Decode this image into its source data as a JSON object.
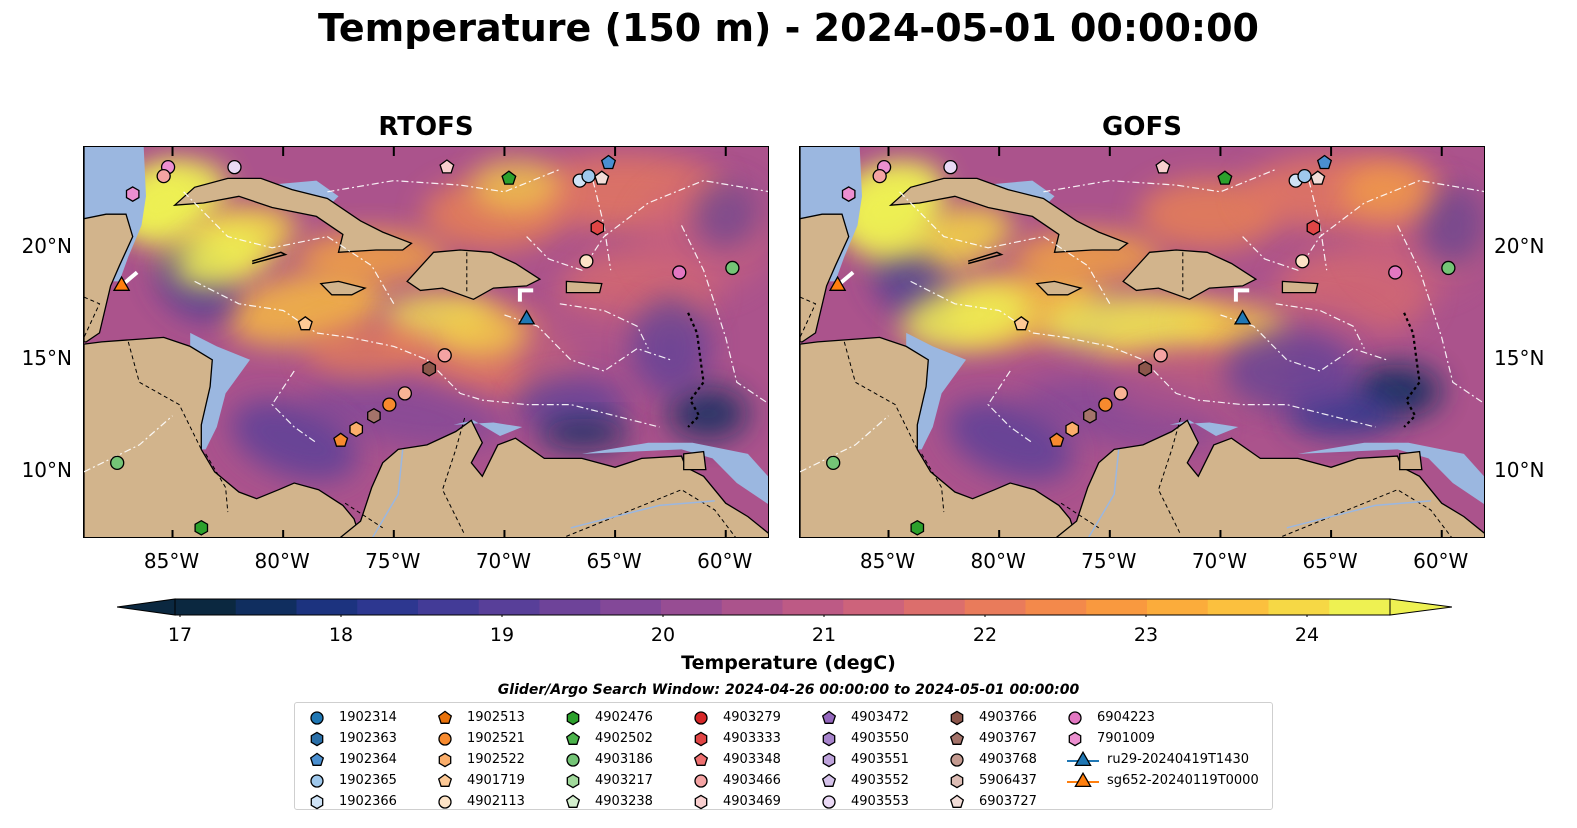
{
  "title": "Temperature (150 m) - 2024-05-01 00:00:00",
  "panels": [
    {
      "title": "RTOFS"
    },
    {
      "title": "GOFS"
    }
  ],
  "lon_labels": [
    "85°W",
    "80°W",
    "75°W",
    "70°W",
    "65°W",
    "60°W"
  ],
  "lat_labels": [
    "20°N",
    "15°N",
    "10°N"
  ],
  "colorbar": {
    "label": "Temperature (degC)",
    "ticks": [
      "17",
      "18",
      "19",
      "20",
      "21",
      "22",
      "23",
      "24"
    ],
    "range": [
      16.5,
      24.5
    ],
    "step": 0.5,
    "colors": [
      "#0b2840",
      "#102e5f",
      "#1c337f",
      "#2d3790",
      "#433b97",
      "#583f99",
      "#6e4399",
      "#834898",
      "#974d93",
      "#ab538c",
      "#bd5a85",
      "#cd637b",
      "#dc6e6c",
      "#e97b5b",
      "#f3894b",
      "#f9993f",
      "#fbac3b",
      "#fbc03e",
      "#f6d845",
      "#eef152"
    ]
  },
  "search_window": "Glider/Argo Search Window: 2024-04-26 00:00:00 to 2024-05-01 00:00:00",
  "colors": {
    "land": "#d2b48c",
    "shelf": "#9bb7e0",
    "deep_cold": "#0b2840",
    "ru29": "#1f77b4",
    "sg652": "#ff7f0e"
  },
  "legend": [
    {
      "label": "1902314",
      "marker": "circle",
      "color": "#1f77b4"
    },
    {
      "label": "1902363",
      "marker": "hexagon",
      "color": "#2a6fa8"
    },
    {
      "label": "1902364",
      "marker": "pentagon",
      "color": "#4a8fd0"
    },
    {
      "label": "1902365",
      "marker": "circle",
      "color": "#9fc8ec"
    },
    {
      "label": "1902366",
      "marker": "hexagon",
      "color": "#cfe3f6"
    },
    {
      "label": "1902513",
      "marker": "pentagon",
      "color": "#e8710a"
    },
    {
      "label": "1902521",
      "marker": "circle",
      "color": "#f78a2e"
    },
    {
      "label": "1902522",
      "marker": "hexagon",
      "color": "#fbae6b"
    },
    {
      "label": "4901719",
      "marker": "pentagon",
      "color": "#fdc996"
    },
    {
      "label": "4902113",
      "marker": "circle",
      "color": "#fde3c6"
    },
    {
      "label": "4902476",
      "marker": "hexagon",
      "color": "#2ca02c"
    },
    {
      "label": "4902502",
      "marker": "pentagon",
      "color": "#4bb34b"
    },
    {
      "label": "4903186",
      "marker": "circle",
      "color": "#74c476"
    },
    {
      "label": "4903217",
      "marker": "hexagon",
      "color": "#a1d99b"
    },
    {
      "label": "4903238",
      "marker": "pentagon",
      "color": "#d4efce"
    },
    {
      "label": "4903279",
      "marker": "circle",
      "color": "#d62728"
    },
    {
      "label": "4903333",
      "marker": "hexagon",
      "color": "#e04545"
    },
    {
      "label": "4903348",
      "marker": "pentagon",
      "color": "#ee7070"
    },
    {
      "label": "4903466",
      "marker": "circle",
      "color": "#f4a3a3"
    },
    {
      "label": "4903469",
      "marker": "hexagon",
      "color": "#f9cfcf"
    },
    {
      "label": "4903472",
      "marker": "pentagon",
      "color": "#9467bd"
    },
    {
      "label": "4903550",
      "marker": "hexagon",
      "color": "#a784cc"
    },
    {
      "label": "4903551",
      "marker": "hexagon",
      "color": "#bea3db"
    },
    {
      "label": "4903552",
      "marker": "pentagon",
      "color": "#d5c2ea"
    },
    {
      "label": "4903553",
      "marker": "circle",
      "color": "#ead9f5"
    },
    {
      "label": "4903766",
      "marker": "hexagon",
      "color": "#8c564b"
    },
    {
      "label": "4903767",
      "marker": "pentagon",
      "color": "#a4736a"
    },
    {
      "label": "4903768",
      "marker": "circle",
      "color": "#c49a90"
    },
    {
      "label": "5906437",
      "marker": "hexagon",
      "color": "#ddbdb5"
    },
    {
      "label": "6903727",
      "marker": "pentagon",
      "color": "#f2ddd8"
    },
    {
      "label": "6904223",
      "marker": "circle",
      "color": "#e377c2"
    },
    {
      "label": "7901009",
      "marker": "hexagon",
      "color": "#ec8fd0"
    },
    {
      "label": "ru29-20240419T1430",
      "marker": "triangle-line",
      "color": "#1f77b4"
    },
    {
      "label": "sg652-20240119T0000",
      "marker": "triangle-line",
      "color": "#ff7f0e"
    }
  ],
  "map_markers": [
    {
      "lon": -85.2,
      "lat": 23.6,
      "marker": "circle",
      "color": "#ec8fd0"
    },
    {
      "lon": -85.4,
      "lat": 23.2,
      "marker": "circle",
      "color": "#f4a3a3"
    },
    {
      "lon": -82.2,
      "lat": 23.6,
      "marker": "circle",
      "color": "#ead9f5"
    },
    {
      "lon": -86.8,
      "lat": 22.4,
      "marker": "hexagon",
      "color": "#ec8fd0"
    },
    {
      "lon": -72.6,
      "lat": 23.6,
      "marker": "pentagon",
      "color": "#f9cfcf"
    },
    {
      "lon": -69.8,
      "lat": 23.1,
      "marker": "pentagon",
      "color": "#2ca02c"
    },
    {
      "lon": -65.3,
      "lat": 23.8,
      "marker": "pentagon",
      "color": "#4a8fd0"
    },
    {
      "lon": -66.6,
      "lat": 23.0,
      "marker": "circle",
      "color": "#cfe3f6"
    },
    {
      "lon": -66.2,
      "lat": 23.2,
      "marker": "circle",
      "color": "#9fc8ec"
    },
    {
      "lon": -65.6,
      "lat": 23.1,
      "marker": "pentagon",
      "color": "#f2ddd8"
    },
    {
      "lon": -65.8,
      "lat": 20.9,
      "marker": "hexagon",
      "color": "#e04545"
    },
    {
      "lon": -66.3,
      "lat": 19.4,
      "marker": "circle",
      "color": "#fde3c6"
    },
    {
      "lon": -62.1,
      "lat": 18.9,
      "marker": "circle",
      "color": "#e377c2"
    },
    {
      "lon": -59.7,
      "lat": 19.1,
      "marker": "circle",
      "color": "#74c476"
    },
    {
      "lon": -79.0,
      "lat": 16.6,
      "marker": "pentagon",
      "color": "#fdc996"
    },
    {
      "lon": -72.7,
      "lat": 15.2,
      "marker": "circle",
      "color": "#f4a3a3"
    },
    {
      "lon": -73.4,
      "lat": 14.6,
      "marker": "hexagon",
      "color": "#8c564b"
    },
    {
      "lon": -74.5,
      "lat": 13.5,
      "marker": "circle",
      "color": "#f9b495"
    },
    {
      "lon": -75.2,
      "lat": 13.0,
      "marker": "circle",
      "color": "#f78a2e"
    },
    {
      "lon": -75.9,
      "lat": 12.5,
      "marker": "hexagon",
      "color": "#a4736a"
    },
    {
      "lon": -76.7,
      "lat": 11.9,
      "marker": "hexagon",
      "color": "#fbae6b"
    },
    {
      "lon": -77.4,
      "lat": 11.4,
      "marker": "pentagon",
      "color": "#f78a2e"
    },
    {
      "lon": -87.5,
      "lat": 10.4,
      "marker": "circle",
      "color": "#74c476"
    },
    {
      "lon": -83.7,
      "lat": 7.5,
      "marker": "hexagon",
      "color": "#2ca02c"
    },
    {
      "lon": -87.3,
      "lat": 18.3,
      "marker": "triangle",
      "color": "#ff7f0e"
    },
    {
      "lon": -69.0,
      "lat": 16.8,
      "marker": "triangle",
      "color": "#1f77b4"
    }
  ],
  "map_extent": {
    "lon": [
      -89,
      -58
    ],
    "lat": [
      7,
      24.5
    ]
  }
}
